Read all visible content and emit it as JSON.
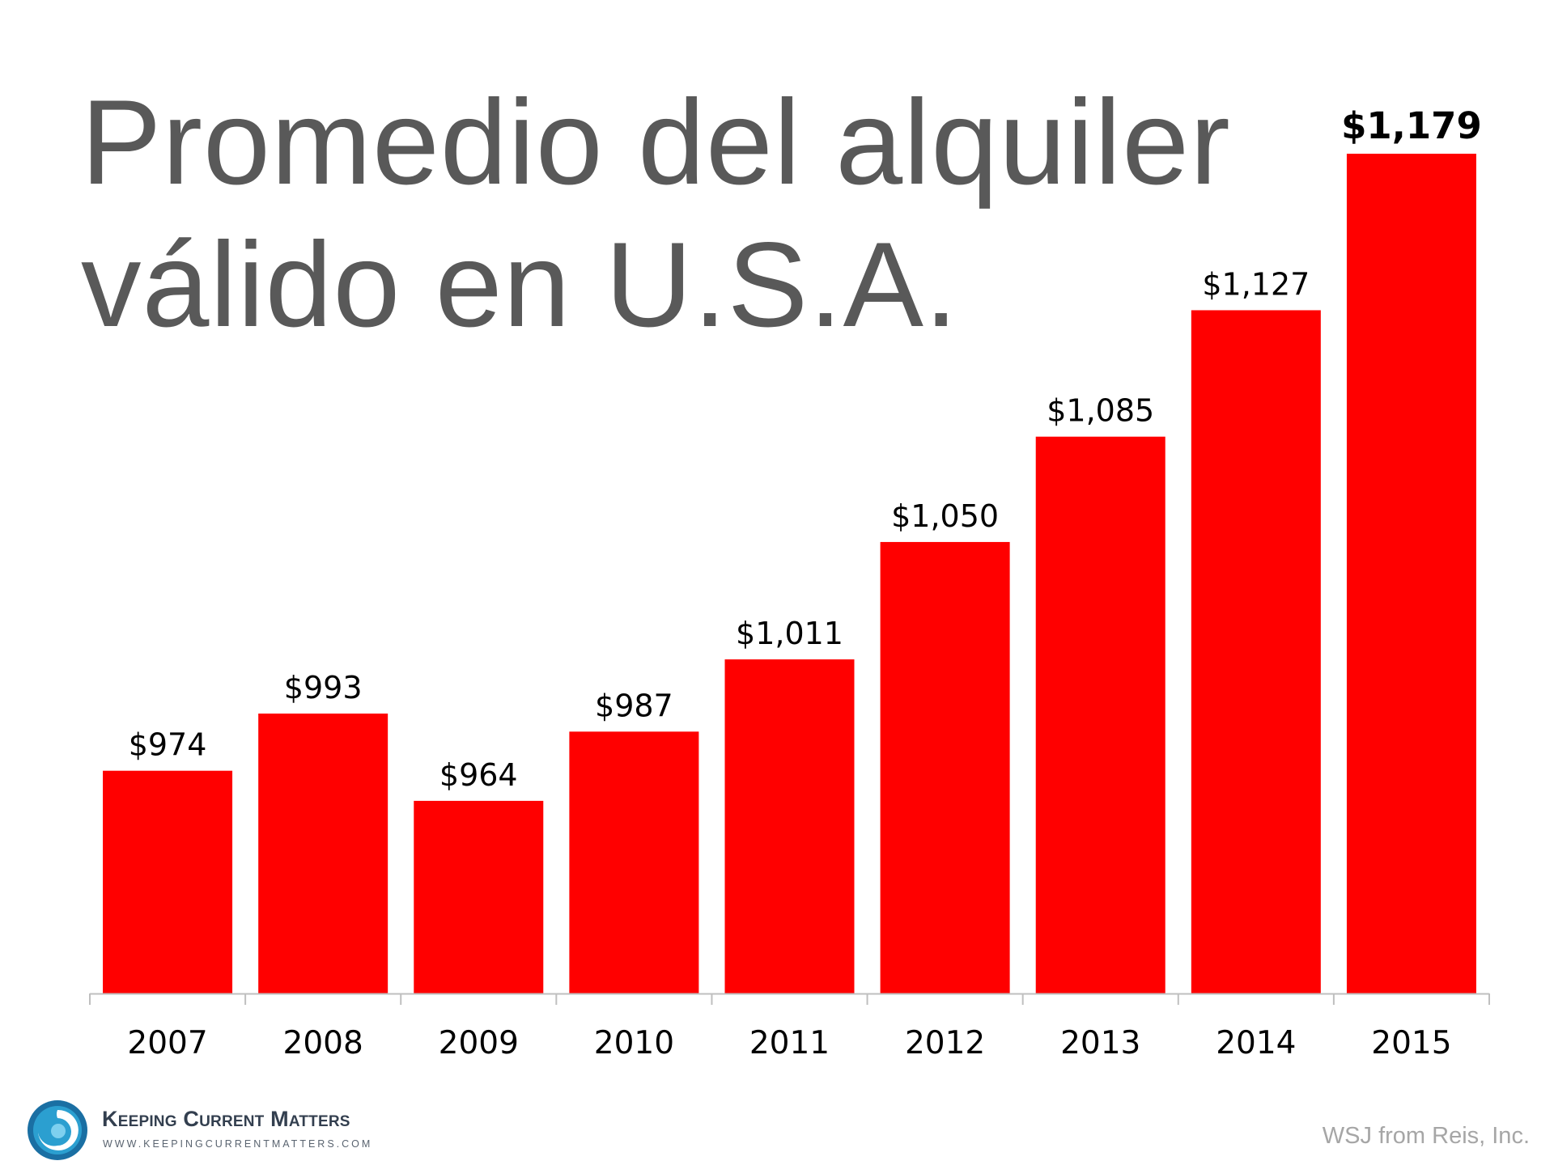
{
  "colors": {
    "bar": "#ff0000",
    "title": "#595959",
    "axis": "#bfbfbf",
    "labels": "#000000",
    "source": "#a6a6a6"
  },
  "chart_data": {
    "type": "bar",
    "title": [
      "Promedio del alquiler",
      "válido en U.S.A."
    ],
    "categories": [
      "2007",
      "2008",
      "2009",
      "2010",
      "2011",
      "2012",
      "2013",
      "2014",
      "2015"
    ],
    "values": [
      974,
      993,
      964,
      987,
      1011,
      1050,
      1085,
      1127,
      1179
    ],
    "data_labels": [
      "$974",
      "$993",
      "$964",
      "$987",
      "$1,011",
      "$1,050",
      "$1,085",
      "$1,127",
      "$1,179"
    ],
    "highlighted_label_index": 8,
    "xlabel": "",
    "ylabel": "",
    "ylim": [
      900,
      1179
    ],
    "grid": false,
    "legend": "none"
  },
  "footer": {
    "brand_name": "Keeping Current Matters",
    "brand_url": "WWW.KEEPINGCURRENTMATTERS.COM",
    "logo_icon": "swirl-logo-icon",
    "source": "WSJ from Reis, Inc."
  }
}
